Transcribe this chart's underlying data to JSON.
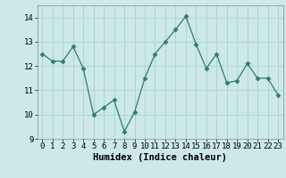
{
  "x": [
    0,
    1,
    2,
    3,
    4,
    5,
    6,
    7,
    8,
    9,
    10,
    11,
    12,
    13,
    14,
    15,
    16,
    17,
    18,
    19,
    20,
    21,
    22,
    23
  ],
  "y": [
    12.5,
    12.2,
    12.2,
    12.8,
    11.9,
    10.0,
    10.3,
    10.6,
    9.3,
    10.1,
    11.5,
    12.5,
    13.0,
    13.5,
    14.05,
    12.9,
    11.9,
    12.5,
    11.3,
    11.4,
    12.1,
    11.5,
    11.5,
    10.8
  ],
  "line_color": "#2e7d6e",
  "marker": "D",
  "marker_size": 2.5,
  "bg_color": "#cce8e8",
  "grid_color": "#b0d4d4",
  "xlabel": "Humidex (Indice chaleur)",
  "ylim": [
    9,
    14.5
  ],
  "yticks": [
    9,
    10,
    11,
    12,
    13,
    14
  ],
  "axis_fontsize": 7,
  "tick_fontsize": 6.5,
  "xlabel_fontsize": 7.5
}
